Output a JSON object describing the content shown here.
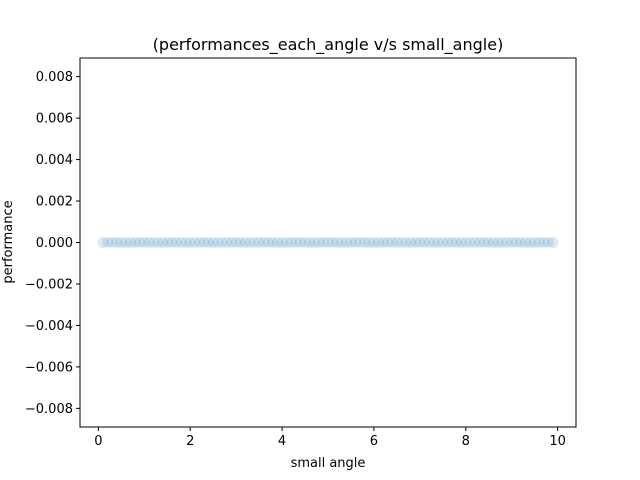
{
  "chart_data": {
    "type": "scatter",
    "title": "(performances_each_angle v/s small_angle)",
    "xlabel": "small angle",
    "ylabel": "performance",
    "xlim": [
      -0.4,
      10.4
    ],
    "ylim": [
      -0.0089,
      0.0089
    ],
    "xticks": [
      0,
      2,
      4,
      6,
      8,
      10
    ],
    "xtick_labels": [
      "0",
      "2",
      "4",
      "6",
      "8",
      "10"
    ],
    "yticks": [
      -0.008,
      -0.006,
      -0.004,
      -0.002,
      0.0,
      0.002,
      0.004,
      0.006,
      0.008
    ],
    "ytick_labels": [
      "−0.008",
      "−0.006",
      "−0.004",
      "−0.002",
      "0.000",
      "0.002",
      "0.004",
      "0.006",
      "0.008"
    ],
    "grid": false,
    "marker_color": "#1f77b4",
    "marker_opacity": 0.15,
    "series": [
      {
        "x": [
          0.1,
          0.2,
          0.3,
          0.4,
          0.5,
          0.6,
          0.7,
          0.8,
          0.9,
          1.0,
          1.1,
          1.2,
          1.3,
          1.4,
          1.5,
          1.6,
          1.7,
          1.8,
          1.9,
          2.0,
          2.1,
          2.2,
          2.3,
          2.4,
          2.5,
          2.6,
          2.7,
          2.8,
          2.9,
          3.0,
          3.1,
          3.2,
          3.3,
          3.4,
          3.5,
          3.6,
          3.7,
          3.8,
          3.9,
          4.0,
          4.1,
          4.2,
          4.3,
          4.4,
          4.5,
          4.6,
          4.7,
          4.8,
          4.9,
          5.0,
          5.1,
          5.2,
          5.3,
          5.4,
          5.5,
          5.6,
          5.7,
          5.8,
          5.9,
          6.0,
          6.1,
          6.2,
          6.3,
          6.4,
          6.5,
          6.6,
          6.7,
          6.8,
          6.9,
          7.0,
          7.1,
          7.2,
          7.3,
          7.4,
          7.5,
          7.6,
          7.7,
          7.8,
          7.9,
          8.0,
          8.1,
          8.2,
          8.3,
          8.4,
          8.5,
          8.6,
          8.7,
          8.8,
          8.9,
          9.0,
          9.1,
          9.2,
          9.3,
          9.4,
          9.5,
          9.6,
          9.7,
          9.8,
          9.9
        ],
        "y": [
          0,
          0,
          0,
          0,
          0,
          0,
          0,
          0,
          0,
          0,
          0,
          0,
          0,
          0,
          0,
          0,
          0,
          0,
          0,
          0,
          0,
          0,
          0,
          0,
          0,
          0,
          0,
          0,
          0,
          0,
          0,
          0,
          0,
          0,
          0,
          0,
          0,
          0,
          0,
          0,
          0,
          0,
          0,
          0,
          0,
          0,
          0,
          0,
          0,
          0,
          0,
          0,
          0,
          0,
          0,
          0,
          0,
          0,
          0,
          0,
          0,
          0,
          0,
          0,
          0,
          0,
          0,
          0,
          0,
          0,
          0,
          0,
          0,
          0,
          0,
          0,
          0,
          0,
          0,
          0,
          0,
          0,
          0,
          0,
          0,
          0,
          0,
          0,
          0,
          0,
          0,
          0,
          0,
          0,
          0,
          0,
          0,
          0,
          0
        ]
      }
    ]
  }
}
